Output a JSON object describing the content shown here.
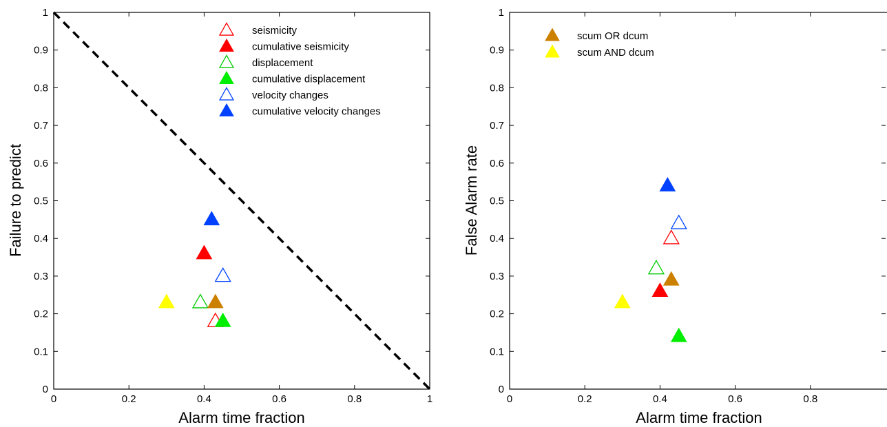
{
  "chart_data": [
    {
      "type": "scatter",
      "title": "",
      "xlabel": "Alarm time fraction",
      "ylabel": "Failure to predict",
      "xlim": [
        0,
        1
      ],
      "ylim": [
        0,
        1
      ],
      "xticks": [
        0,
        0.2,
        0.4,
        0.6,
        0.8,
        1
      ],
      "xtick_labels": [
        "0",
        "0.2",
        "0.4",
        "0.6",
        "0.8",
        "1"
      ],
      "yticks": [
        0,
        0.1,
        0.2,
        0.3,
        0.4,
        0.5,
        0.6,
        0.7,
        0.8,
        0.9,
        1
      ],
      "ytick_labels": [
        "0",
        "0.1",
        "0.2",
        "0.3",
        "0.4",
        "0.5",
        "0.6",
        "0.7",
        "0.8",
        "0.9",
        "1"
      ],
      "grid": false,
      "legend_position": "top-right",
      "reference_line": {
        "x": [
          0,
          1
        ],
        "y": [
          1,
          0
        ],
        "style": "dashed",
        "color": "#000000"
      },
      "series": [
        {
          "name": "seismicity",
          "marker": "triangle-open",
          "color": "#ff0000",
          "x": [
            0.43
          ],
          "y": [
            0.18
          ]
        },
        {
          "name": "cumulative seismicity",
          "marker": "triangle-filled",
          "color": "#ff0000",
          "x": [
            0.4
          ],
          "y": [
            0.36
          ]
        },
        {
          "name": "displacement",
          "marker": "triangle-open",
          "color": "#00cc00",
          "x": [
            0.39
          ],
          "y": [
            0.23
          ]
        },
        {
          "name": "cumulative displacement",
          "marker": "triangle-filled",
          "color": "#00ee00",
          "x": [
            0.45
          ],
          "y": [
            0.18
          ]
        },
        {
          "name": "velocity changes",
          "marker": "triangle-open",
          "color": "#0044ff",
          "x": [
            0.45
          ],
          "y": [
            0.3
          ]
        },
        {
          "name": "cumulative velocity changes",
          "marker": "triangle-filled",
          "color": "#0040ff",
          "x": [
            0.42
          ],
          "y": [
            0.45
          ]
        },
        {
          "name": "",
          "marker": "triangle-filled",
          "color": "#cc8000",
          "x": [
            0.43
          ],
          "y": [
            0.23
          ]
        },
        {
          "name": "",
          "marker": "triangle-filled",
          "color": "#ffff00",
          "x": [
            0.3
          ],
          "y": [
            0.23
          ]
        }
      ]
    },
    {
      "type": "scatter",
      "title": "",
      "xlabel": "Alarm time fraction",
      "ylabel": "False Alarm rate",
      "xlim": [
        0,
        1
      ],
      "ylim": [
        0,
        1
      ],
      "xticks": [
        0,
        0.2,
        0.4,
        0.6,
        0.8
      ],
      "xtick_labels": [
        "0",
        "0.2",
        "0.4",
        "0.6",
        "0.8"
      ],
      "yticks": [
        0,
        0.1,
        0.2,
        0.3,
        0.4,
        0.5,
        0.6,
        0.7,
        0.8,
        0.9,
        1
      ],
      "ytick_labels": [
        "0",
        "0.1",
        "0.2",
        "0.3",
        "0.4",
        "0.5",
        "0.6",
        "0.7",
        "0.8",
        "0.9",
        "1"
      ],
      "grid": false,
      "legend_position": "top-left",
      "series": [
        {
          "name": "",
          "marker": "triangle-open",
          "color": "#ff0000",
          "x": [
            0.43
          ],
          "y": [
            0.4
          ]
        },
        {
          "name": "",
          "marker": "triangle-filled",
          "color": "#ff0000",
          "x": [
            0.4
          ],
          "y": [
            0.26
          ]
        },
        {
          "name": "",
          "marker": "triangle-open",
          "color": "#00cc00",
          "x": [
            0.39
          ],
          "y": [
            0.32
          ]
        },
        {
          "name": "",
          "marker": "triangle-filled",
          "color": "#00ee00",
          "x": [
            0.45
          ],
          "y": [
            0.14
          ]
        },
        {
          "name": "",
          "marker": "triangle-open",
          "color": "#0044ff",
          "x": [
            0.45
          ],
          "y": [
            0.44
          ]
        },
        {
          "name": "",
          "marker": "triangle-filled",
          "color": "#0040ff",
          "x": [
            0.42
          ],
          "y": [
            0.54
          ]
        },
        {
          "name": "scum OR dcum",
          "marker": "triangle-filled",
          "color": "#cc8000",
          "x": [
            0.43
          ],
          "y": [
            0.29
          ]
        },
        {
          "name": "scum AND dcum",
          "marker": "triangle-filled",
          "color": "#ffff00",
          "x": [
            0.3
          ],
          "y": [
            0.23
          ]
        }
      ]
    }
  ]
}
